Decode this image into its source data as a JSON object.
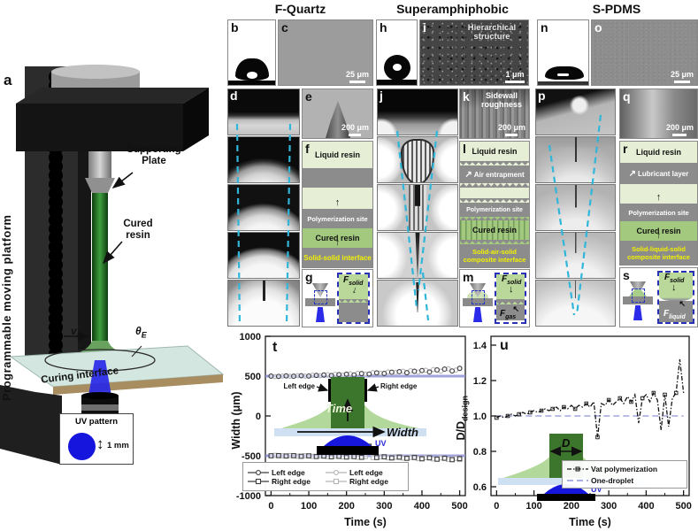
{
  "figure": {
    "headers": [
      {
        "label": "F-Quartz"
      },
      {
        "label": "Superamphiphobic"
      },
      {
        "label": "S-PDMS"
      }
    ]
  },
  "icons": {
    "arrow_up": "↑",
    "arrow_down": "↓",
    "arrow_up_left": "↖",
    "arrow_up_right": "↗",
    "arrow_updown": "↕"
  },
  "colors": {
    "cyan_dashed": "#2fb6d9",
    "reference_purple": "#8f93d6",
    "uv_blue": "#1a1ad8",
    "cured_green": "#a3c97f",
    "liquid_green": "#e6efd5",
    "interface_yellow": "#f2f200",
    "schematic_gray": "#8c8c8c"
  },
  "panels": {
    "a": {
      "label": "a",
      "side_label": "Programmable moving platform",
      "supporting_plate": "Supporting Plate",
      "cured_resin": "Cured resin",
      "curing_interface": "Curing interface",
      "velocity_main": "v",
      "velocity_sub": "m",
      "theta_main": "θ",
      "theta_sub": "E",
      "uv_pattern": "UV pattern",
      "pattern_size": "1 mm"
    },
    "b": {
      "label": "b"
    },
    "c": {
      "label": "c",
      "scalebar": "25 μm"
    },
    "d": {
      "label": "d"
    },
    "e": {
      "label": "e",
      "scalebar": "200 μm"
    },
    "f": {
      "label": "f",
      "layers": [
        "Liquid resin",
        "Polymerization site",
        "Cured resin",
        "Solid-solid interface"
      ]
    },
    "g": {
      "label": "g",
      "force1_main": "F",
      "force1_sub": "solid"
    },
    "h": {
      "label": "h"
    },
    "i": {
      "label": "i",
      "annotation": "Hierarchical structure",
      "scalebar": "1 μm"
    },
    "j": {
      "label": "j"
    },
    "k": {
      "label": "k",
      "annotation": "Sidewall roughness",
      "scalebar": "200 μm"
    },
    "l": {
      "label": "l",
      "layers": [
        "Liquid resin",
        "Air entrapment",
        "Polymerization site",
        "Cured resin",
        "Solid-air-solid composite interface"
      ]
    },
    "m": {
      "label": "m",
      "force1_main": "F",
      "force1_sub": "solid",
      "force2_main": "F",
      "force2_sub": "gas"
    },
    "n": {
      "label": "n"
    },
    "o": {
      "label": "o",
      "scalebar": "25 μm"
    },
    "p": {
      "label": "p"
    },
    "q": {
      "label": "q",
      "scalebar": "200 μm"
    },
    "r": {
      "label": "r",
      "layers": [
        "Liquid resin",
        "Lubricant layer",
        "Polymerization site",
        "Cured resin",
        "Solid-liquid-solid composite interface"
      ]
    },
    "s": {
      "label": "s",
      "force1_main": "F",
      "force1_sub": "solid",
      "force2_main": "F",
      "force2_sub": "liquid"
    },
    "t": {
      "label": "t"
    },
    "u": {
      "label": "u"
    }
  },
  "chart_data": [
    {
      "id": "t",
      "type": "scatter",
      "xlabel": "Time (s)",
      "ylabel": "Width (μm)",
      "xlim": [
        -15,
        515
      ],
      "ylim": [
        -1000,
        1000
      ],
      "xticks": [
        0,
        100,
        200,
        300,
        400,
        500
      ],
      "xminor": [
        50,
        150,
        250,
        350,
        450
      ],
      "yticks": [
        -1000,
        -500,
        0,
        500,
        1000
      ],
      "grid": false,
      "legend_position": "bottom-left",
      "reference_lines": {
        "color": "#8f93d6",
        "y": [
          500,
          -500
        ]
      },
      "inset_labels": {
        "left_edge": "Left edge",
        "right_edge": "Right edge",
        "time": "Time",
        "width": "Width",
        "uv": "UV"
      },
      "series": [
        {
          "name": "Left edge",
          "marker": "circle",
          "color": "#3d3d3d",
          "x": [
            0,
            20,
            40,
            60,
            80,
            100,
            120,
            140,
            160,
            180,
            200,
            220,
            240,
            260,
            280,
            300,
            320,
            340,
            360,
            380,
            400,
            420,
            440,
            460,
            480,
            500
          ],
          "y": [
            500,
            497,
            503,
            499,
            505,
            501,
            509,
            514,
            507,
            519,
            524,
            515,
            532,
            526,
            541,
            534,
            549,
            556,
            543,
            561,
            570,
            552,
            578,
            588,
            565,
            597
          ]
        },
        {
          "name": "Right edge",
          "marker": "square",
          "color": "#3d3d3d",
          "x": [
            0,
            20,
            40,
            60,
            80,
            100,
            120,
            140,
            160,
            180,
            200,
            220,
            240,
            260,
            280,
            300,
            320,
            340,
            360,
            380,
            400,
            420,
            440,
            460,
            480,
            500
          ],
          "y": [
            -500,
            -498,
            -503,
            -499,
            -506,
            -501,
            -509,
            -504,
            -513,
            -507,
            -516,
            -510,
            -519,
            -380,
            -522,
            -513,
            -527,
            -517,
            -532,
            -521,
            -538,
            -526,
            -543,
            -531,
            -549,
            -536
          ]
        },
        {
          "name": "Left edge",
          "marker": "circle",
          "color": "#b5b5b5",
          "x": [
            10,
            30,
            50,
            70,
            90,
            110,
            130,
            150,
            170,
            190,
            210,
            230,
            250,
            270,
            290,
            310,
            330,
            350,
            370,
            390,
            410,
            430,
            450,
            470,
            490,
            500
          ],
          "y": [
            494,
            501,
            498,
            506,
            500,
            511,
            505,
            517,
            522,
            512,
            528,
            535,
            524,
            543,
            537,
            552,
            546,
            560,
            567,
            551,
            574,
            583,
            562,
            592,
            576,
            601
          ]
        },
        {
          "name": "Right edge",
          "marker": "square",
          "color": "#b5b5b5",
          "x": [
            10,
            30,
            50,
            70,
            90,
            110,
            130,
            150,
            170,
            190,
            210,
            230,
            250,
            270,
            290,
            310,
            330,
            350,
            370,
            390,
            410,
            430,
            450,
            470,
            490,
            500
          ],
          "y": [
            -495,
            -500,
            -497,
            -505,
            -499,
            -507,
            -502,
            -511,
            -505,
            -514,
            -508,
            -518,
            -511,
            -521,
            -514,
            -525,
            -517,
            -529,
            -520,
            -534,
            -523,
            -539,
            -527,
            -545,
            -532,
            -548
          ]
        }
      ]
    },
    {
      "id": "u",
      "type": "line",
      "xlabel": "Time (s)",
      "ylabel_main": "D/D",
      "ylabel_sub": "design",
      "xlim": [
        -15,
        515
      ],
      "ylim": [
        0.55,
        1.45
      ],
      "xticks": [
        0,
        100,
        200,
        300,
        400,
        500
      ],
      "xminor": [
        50,
        150,
        250,
        350,
        450
      ],
      "yticks": [
        0.6,
        0.8,
        1.0,
        1.2,
        1.4
      ],
      "ydec": true,
      "grid": false,
      "legend_position": "bottom-right",
      "inset_labels": {
        "diameter": "D",
        "uv": "UV"
      },
      "series": [
        {
          "name": "Vat polymerization",
          "line": true,
          "marker": "square",
          "color": "#141414",
          "dash": "5 2 1.5 2",
          "x": [
            0,
            10,
            20,
            30,
            40,
            50,
            60,
            70,
            80,
            90,
            100,
            110,
            120,
            130,
            140,
            150,
            160,
            170,
            180,
            190,
            200,
            210,
            220,
            230,
            240,
            250,
            260,
            270,
            280,
            290,
            300,
            310,
            320,
            330,
            340,
            350,
            360,
            370,
            380,
            390,
            400,
            410,
            420,
            430,
            440,
            450,
            460,
            470,
            480,
            490,
            500
          ],
          "y": [
            0.99,
            1.0,
            0.99,
            1.0,
            1.01,
            1.0,
            1.01,
            1.02,
            1.01,
            1.02,
            1.03,
            1.02,
            1.03,
            1.04,
            1.03,
            1.04,
            1.05,
            1.03,
            1.05,
            1.04,
            1.06,
            1.04,
            1.06,
            1.05,
            1.07,
            1.05,
            1.08,
            0.88,
            1.07,
            1.06,
            1.09,
            1.06,
            1.08,
            1.1,
            1.07,
            1.11,
            1.08,
            1.12,
            0.96,
            1.1,
            1.12,
            1.08,
            1.13,
            1.09,
            0.92,
            1.12,
            0.94,
            1.1,
            1.13,
            1.32,
            1.13
          ]
        },
        {
          "name": "One-droplet",
          "line": true,
          "color": "#8f93d6",
          "dash": "7 4",
          "x": [
            0,
            500
          ],
          "y": [
            1.0,
            1.0
          ]
        }
      ]
    }
  ]
}
